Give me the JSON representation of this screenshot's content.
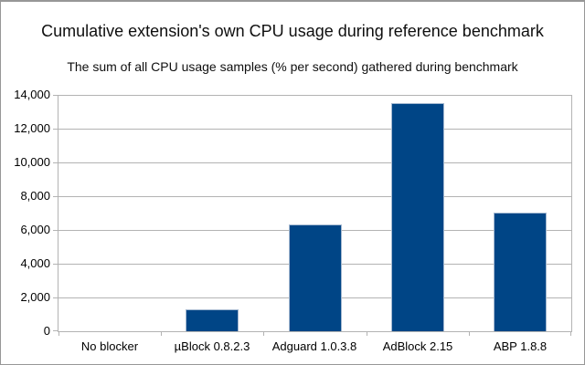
{
  "frame": {
    "background": "#ffffff",
    "border_color": "#979797"
  },
  "chart_data": {
    "type": "bar",
    "title": "Cumulative extension's own CPU usage during reference benchmark",
    "subtitle": "The sum of all CPU usage samples (% per second) gathered during benchmark",
    "categories": [
      "No blocker",
      "µBlock 0.8.2.3",
      "Adguard 1.0.3.8",
      "AdBlock 2.15",
      "ABP 1.8.8"
    ],
    "values": [
      0,
      1300,
      6350,
      13500,
      7000
    ],
    "xlabel": "",
    "ylabel": "",
    "ylim": [
      0,
      14000
    ],
    "ytick_step": 2000,
    "ytick_labels": [
      "0",
      "2,000",
      "4,000",
      "6,000",
      "8,000",
      "10,000",
      "12,000",
      "14,000"
    ],
    "grid": true,
    "legend_position": "none",
    "colors": {
      "bar_fill": "#004586",
      "bar_edge": "#a4b8d0",
      "grid": "#b3b3b3",
      "axis": "#b3b3b3",
      "text": "#000000"
    }
  }
}
